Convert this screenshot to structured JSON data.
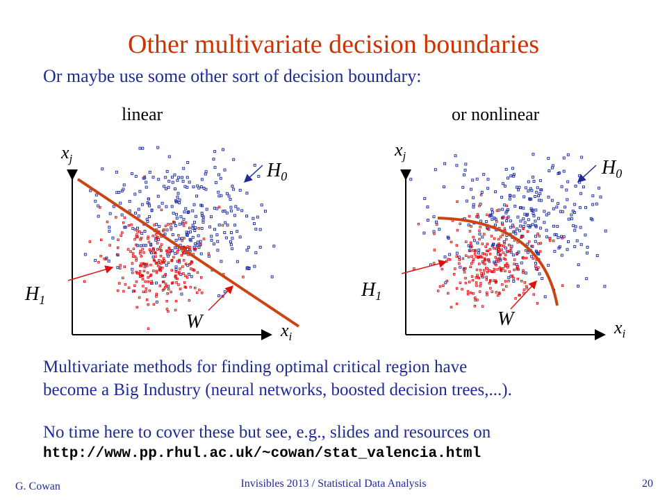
{
  "slide": {
    "title": "Other multivariate decision boundaries",
    "subtitle": "Or maybe use some other sort of decision boundary:",
    "caption_left": "linear",
    "caption_right": "or nonlinear",
    "paragraph1_line1": "Multivariate methods for finding optimal critical region have",
    "paragraph1_line2": "become a Big Industry (neural networks, boosted decision trees,...).",
    "paragraph2": "No time here to cover these but see, e.g., slides and resources on",
    "url": "http://www.pp.rhul.ac.uk/~cowan/stat_valencia.html"
  },
  "plots": {
    "left": {
      "y_axis": "x",
      "y_sub": "j",
      "x_axis": "x",
      "x_sub": "i",
      "h0": "H",
      "h0_sub": "0",
      "h1": "H",
      "h1_sub": "1",
      "w": "W"
    },
    "right": {
      "y_axis": "x",
      "y_sub": "j",
      "x_axis": "x",
      "x_sub": "i",
      "h0": "H",
      "h0_sub": "0",
      "h1": "H",
      "h1_sub": "1",
      "w": "W"
    }
  },
  "colors": {
    "title": "#cc3300",
    "text": "#1f2a99",
    "h0_points": "#2233aa",
    "h1_points": "#dd1111",
    "boundary": "#cc4411"
  },
  "footer": {
    "author": "G. Cowan",
    "center": "Invisibles 2013 / Statistical Data Analysis",
    "page": "20"
  }
}
